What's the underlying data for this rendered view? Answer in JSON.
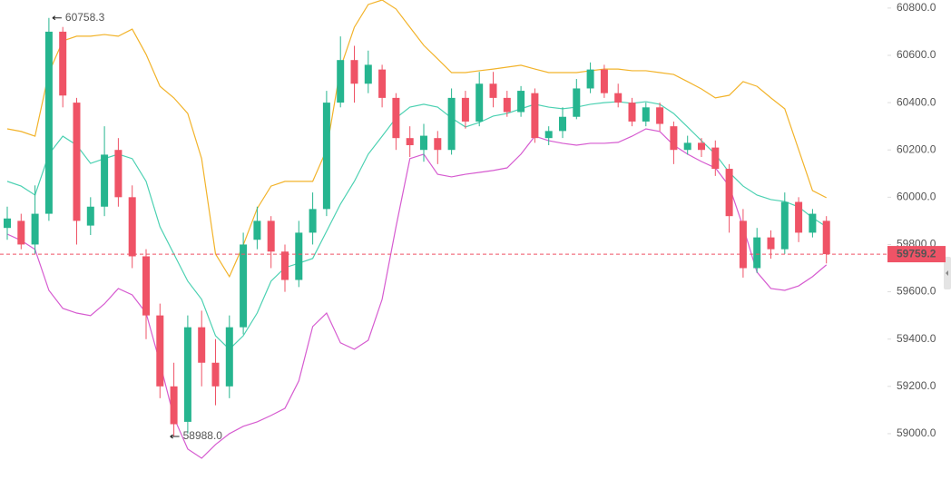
{
  "chart_data": {
    "type": "candlestick",
    "open": [
      59870,
      59900,
      59800,
      59930,
      60700,
      60400,
      59880,
      59960,
      60200,
      60000,
      59750,
      59500,
      59200,
      59050,
      59450,
      59300,
      59200,
      59450,
      59820,
      59900,
      59770,
      59650,
      59850,
      59950,
      60400,
      60580,
      60480,
      60540,
      60420,
      60250,
      60200,
      60250,
      60200,
      60420,
      60320,
      60480,
      60420,
      60360,
      60440,
      60250,
      60280,
      60340,
      60460,
      60540,
      60440,
      60400,
      60320,
      60380,
      60300,
      60200,
      60230,
      60210,
      60120,
      59900,
      59700,
      59830,
      59780,
      59980,
      59850,
      59900
    ],
    "high": [
      59960,
      59930,
      60050,
      60758.3,
      60720,
      60420,
      60000,
      60300,
      60250,
      60050,
      59780,
      59550,
      59300,
      59500,
      59520,
      59400,
      59500,
      59850,
      59960,
      59920,
      59800,
      59900,
      60020,
      60450,
      60680,
      60640,
      60620,
      60560,
      60440,
      60300,
      60310,
      60280,
      60460,
      60450,
      60530,
      60530,
      60450,
      60470,
      60460,
      60300,
      60380,
      60500,
      60570,
      60560,
      60480,
      60420,
      60400,
      60400,
      60320,
      60260,
      60250,
      60240,
      60140,
      59950,
      59870,
      59860,
      60020,
      60000,
      59950,
      59920
    ],
    "low": [
      59820,
      59780,
      59760,
      59900,
      60380,
      59800,
      59840,
      59920,
      59960,
      59700,
      59400,
      59150,
      58988,
      59000,
      59200,
      59120,
      59150,
      59420,
      59780,
      59700,
      59600,
      59620,
      59800,
      59920,
      60380,
      60400,
      60440,
      60380,
      60200,
      60170,
      60150,
      60140,
      60180,
      60290,
      60300,
      60380,
      60340,
      60340,
      60230,
      60220,
      60250,
      60330,
      60440,
      60420,
      60380,
      60300,
      60300,
      60280,
      60140,
      60180,
      60170,
      60090,
      59850,
      59660,
      59680,
      59740,
      59760,
      59810,
      59830,
      59720
    ],
    "close": [
      59910,
      59800,
      59930,
      60700,
      60430,
      59900,
      59960,
      60180,
      60000,
      59750,
      59500,
      59200,
      59040,
      59450,
      59300,
      59200,
      59450,
      59800,
      59900,
      59770,
      59650,
      59850,
      59950,
      60400,
      60580,
      60480,
      60560,
      60420,
      60250,
      60220,
      60260,
      60200,
      60420,
      60320,
      60480,
      60420,
      60360,
      60450,
      60250,
      60280,
      60340,
      60460,
      60540,
      60440,
      60400,
      60320,
      60380,
      60310,
      60200,
      60230,
      60200,
      60120,
      59920,
      59700,
      59830,
      59780,
      59980,
      59850,
      59930,
      59759.2
    ],
    "up_color": "#26b58f",
    "down_color": "#ef5366",
    "bands": [
      {
        "color": "#f2b32a",
        "values": [
          60289,
          60278,
          60258,
          60527,
          60661,
          60681,
          60681,
          60688,
          60681,
          60711,
          60604,
          60469,
          60420,
          60354,
          60163,
          59760,
          59664,
          59798,
          59952,
          60047,
          60067,
          60067,
          60067,
          60201,
          60546,
          60719,
          60815,
          60834,
          60796,
          60719,
          60642,
          60585,
          60527,
          60527,
          60535,
          60542,
          60550,
          60558,
          60542,
          60527,
          60527,
          60527,
          60535,
          60542,
          60542,
          60535,
          60535,
          60527,
          60519,
          60489,
          60458,
          60420,
          60431,
          60489,
          60469,
          60420,
          60374,
          60201,
          60028,
          59998
        ]
      },
      {
        "color": "#4cd1b2",
        "values": [
          60067,
          60047,
          60009,
          60182,
          60258,
          60220,
          60143,
          60163,
          60182,
          60163,
          60067,
          59875,
          59760,
          59645,
          59568,
          59414,
          59357,
          59414,
          59510,
          59645,
          59702,
          59721,
          59741,
          59856,
          59971,
          60067,
          60182,
          60258,
          60335,
          60381,
          60393,
          60381,
          60335,
          60297,
          60316,
          60343,
          60354,
          60374,
          60393,
          60381,
          60374,
          60381,
          60393,
          60400,
          60404,
          60397,
          60404,
          60393,
          60354,
          60297,
          60239,
          60182,
          60105,
          60047,
          60009,
          59990,
          59982,
          59959,
          59913,
          59875
        ]
      },
      {
        "color": "#d65bd0",
        "values": [
          59844,
          59817,
          59779,
          59606,
          59530,
          59510,
          59499,
          59549,
          59614,
          59587,
          59510,
          59299,
          59069,
          58935,
          58896,
          58954,
          59000,
          59031,
          59050,
          59077,
          59107,
          59223,
          59453,
          59510,
          59384,
          59357,
          59395,
          59568,
          59875,
          60163,
          60182,
          60097,
          60086,
          60097,
          60105,
          60113,
          60124,
          60182,
          60258,
          60239,
          60228,
          60220,
          60228,
          60228,
          60232,
          60258,
          60289,
          60278,
          60220,
          60182,
          60151,
          60124,
          60047,
          59875,
          59683,
          59614,
          59606,
          59625,
          59664,
          59714
        ]
      }
    ],
    "last_price": 59759.2,
    "last_price_color": "#ef5366",
    "high_marker": {
      "index": 3,
      "value": 60758.3
    },
    "low_marker": {
      "index": 12,
      "value": 58988,
      "label": "58988.0"
    },
    "ylim": [
      58804,
      60834
    ],
    "yticks": [
      {
        "value": 59000,
        "label": "59000.0"
      },
      {
        "value": 59200,
        "label": "59200.0"
      },
      {
        "value": 59400,
        "label": "59400.0"
      },
      {
        "value": 59600,
        "label": "59600.0"
      },
      {
        "value": 59800,
        "label": "59800.0"
      },
      {
        "value": 60000,
        "label": "60000.0"
      },
      {
        "value": 60200,
        "label": "60200.0"
      },
      {
        "value": 60400,
        "label": "60400.0"
      },
      {
        "value": 60600,
        "label": "60600.0"
      },
      {
        "value": 60800,
        "label": "60800.0"
      }
    ]
  }
}
